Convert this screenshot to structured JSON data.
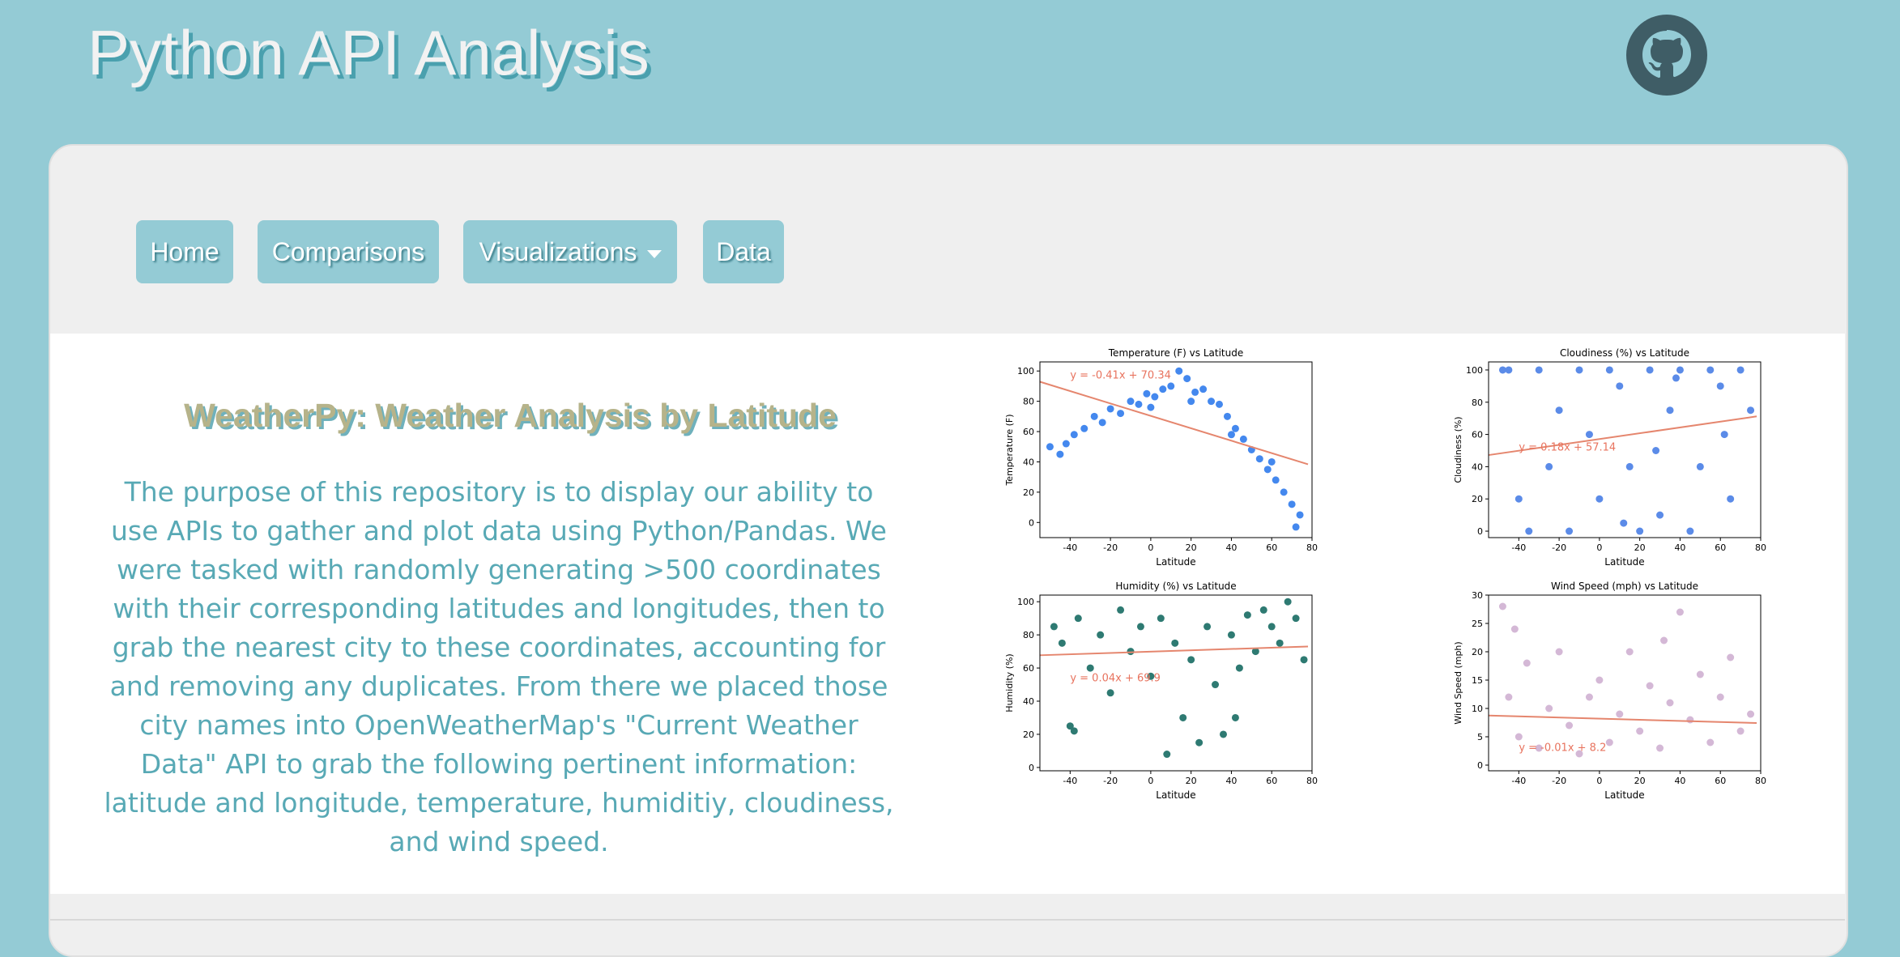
{
  "header": {
    "title": "Python API Analysis"
  },
  "nav": [
    "Home",
    "Comparisons",
    "Visualizations",
    "Data"
  ],
  "content": {
    "heading": "WeatherPy: Weather Analysis by Latitude",
    "paragraph": "The purpose of this repository is to display our ability to use APIs to gather and plot data using Python/Pandas. We were tasked with randomly generating >500 coordinates with their corresponding latitudes and longitudes, then to grab the nearest city to these coordinates, accounting for and removing any duplicates. From there we placed those city names into OpenWeatherMap's \"Current Weather Data\" API to grab the following pertinent information: latitude and longitude, temperature, humiditiy, cloudiness, and wind speed."
  },
  "chart_data": [
    {
      "type": "scatter",
      "title": "Temperature (F) vs Latitude",
      "x_label": "Latitude",
      "y_label": "Temperature (F)",
      "annotation": "y = -0.41x + 70.34",
      "xlim": [
        -55,
        80
      ],
      "xticks": [
        -40,
        -20,
        0,
        20,
        40,
        60,
        80
      ],
      "ylim": [
        -10,
        106
      ],
      "yticks": [
        0,
        20,
        40,
        60,
        80,
        100
      ],
      "series": [
        {
          "color": "#4488ee",
          "x": [
            -45,
            -42,
            -38,
            -33,
            -28,
            -24,
            -20,
            -15,
            -10,
            -6,
            -2,
            2,
            6,
            10,
            14,
            18,
            22,
            26,
            30,
            34,
            38,
            42,
            46,
            50,
            54,
            58,
            62,
            66,
            70,
            74,
            -50,
            0,
            20,
            40,
            60,
            72
          ],
          "values": [
            45,
            52,
            58,
            62,
            70,
            66,
            75,
            72,
            80,
            78,
            85,
            83,
            88,
            90,
            100,
            95,
            86,
            88,
            80,
            78,
            70,
            62,
            55,
            48,
            42,
            35,
            28,
            20,
            12,
            5,
            50,
            76,
            80,
            58,
            40,
            -3
          ]
        }
      ],
      "trendline": {
        "color": "#e5866e",
        "x": [
          -55,
          78
        ],
        "values": [
          92.9,
          38.4
        ]
      }
    },
    {
      "type": "scatter",
      "title": "Cloudiness (%) vs Latitude",
      "x_label": "Latitude",
      "y_label": "Cloudiness (%)",
      "annotation": "y = 0.18x + 57.14",
      "xlim": [
        -55,
        80
      ],
      "xticks": [
        -40,
        -20,
        0,
        20,
        40,
        60,
        80
      ],
      "ylim": [
        -4,
        105
      ],
      "yticks": [
        0,
        20,
        40,
        60,
        80,
        100
      ],
      "series": [
        {
          "color": "#5b8be8",
          "x": [
            -45,
            -40,
            -35,
            -30,
            -25,
            -20,
            -15,
            -10,
            -5,
            0,
            5,
            10,
            15,
            20,
            25,
            30,
            35,
            40,
            45,
            50,
            55,
            60,
            65,
            70,
            75,
            -48,
            12,
            38,
            62,
            28
          ],
          "values": [
            100,
            20,
            0,
            100,
            40,
            75,
            0,
            100,
            60,
            20,
            100,
            90,
            40,
            0,
            100,
            10,
            75,
            100,
            0,
            40,
            100,
            90,
            20,
            100,
            75,
            100,
            5,
            95,
            60,
            50
          ]
        }
      ],
      "trendline": {
        "color": "#e5866e",
        "x": [
          -55,
          78
        ],
        "values": [
          47.2,
          71.2
        ]
      }
    },
    {
      "type": "scatter",
      "title": "Humidity (%) vs Latitude",
      "x_label": "Latitude",
      "y_label": "Humidity (%)",
      "annotation": "y = 0.04x + 69.9",
      "xlim": [
        -55,
        80
      ],
      "xticks": [
        -40,
        -20,
        0,
        20,
        40,
        60,
        80
      ],
      "ylim": [
        -2,
        104
      ],
      "yticks": [
        0,
        20,
        40,
        60,
        80,
        100
      ],
      "series": [
        {
          "color": "#2e7a72",
          "x": [
            -48,
            -44,
            -40,
            -36,
            -30,
            -25,
            -20,
            -15,
            -10,
            -5,
            0,
            5,
            8,
            12,
            16,
            20,
            24,
            28,
            32,
            36,
            40,
            44,
            48,
            52,
            56,
            60,
            64,
            68,
            72,
            76,
            -38,
            42
          ],
          "values": [
            85,
            75,
            25,
            90,
            60,
            80,
            45,
            95,
            70,
            85,
            55,
            90,
            8,
            75,
            30,
            65,
            15,
            85,
            50,
            20,
            80,
            60,
            92,
            70,
            95,
            85,
            75,
            100,
            90,
            65,
            22,
            30
          ]
        }
      ],
      "trendline": {
        "color": "#e5866e",
        "x": [
          -55,
          78
        ],
        "values": [
          67.7,
          73.0
        ]
      }
    },
    {
      "type": "scatter",
      "title": "Wind Speed (mph) vs Latitude",
      "x_label": "Latitude",
      "y_label": "Wind Speed (mph)",
      "annotation": "y = -0.01x + 8.2",
      "xlim": [
        -55,
        80
      ],
      "xticks": [
        -40,
        -20,
        0,
        20,
        40,
        60,
        80
      ],
      "ylim": [
        -1,
        30
      ],
      "yticks": [
        0,
        5,
        10,
        15,
        20,
        25,
        30
      ],
      "series": [
        {
          "color": "#d4b8d6",
          "x": [
            -48,
            -45,
            -40,
            -36,
            -30,
            -25,
            -20,
            -15,
            -10,
            -5,
            0,
            5,
            10,
            15,
            20,
            25,
            30,
            35,
            40,
            45,
            50,
            55,
            60,
            65,
            70,
            75,
            -42,
            32
          ],
          "values": [
            28,
            12,
            5,
            18,
            3,
            10,
            20,
            7,
            2,
            12,
            15,
            4,
            9,
            20,
            6,
            14,
            3,
            11,
            27,
            8,
            16,
            4,
            12,
            19,
            6,
            9,
            24,
            22
          ]
        }
      ],
      "trendline": {
        "color": "#e5866e",
        "x": [
          -55,
          78
        ],
        "values": [
          8.75,
          7.42
        ]
      }
    }
  ]
}
